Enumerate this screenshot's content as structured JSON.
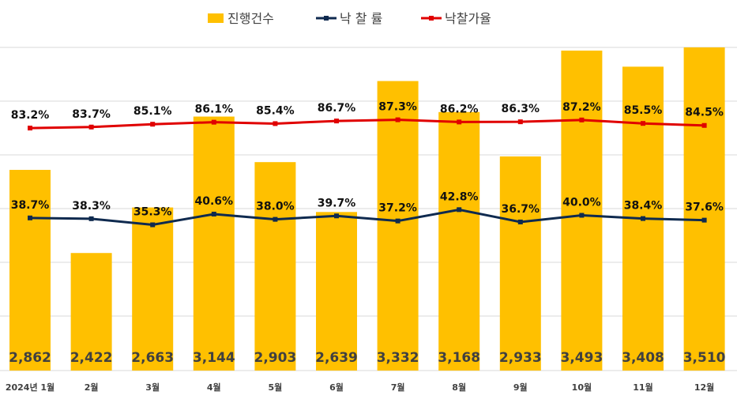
{
  "chart_data": {
    "type": "bar",
    "categories": [
      "2024년 1월",
      "2월",
      "3월",
      "4월",
      "5월",
      "6월",
      "7월",
      "8월",
      "9월",
      "10월",
      "11월",
      "12월"
    ],
    "series": [
      {
        "name": "진행건수",
        "type": "bar",
        "color": "#FFC000",
        "values": [
          2862,
          2422,
          2663,
          3144,
          2903,
          2639,
          3332,
          3168,
          2933,
          3493,
          3408,
          3510
        ],
        "labels": [
          "2,862",
          "2,422",
          "2,663",
          "3,144",
          "2,903",
          "2,639",
          "3,332",
          "3,168",
          "2,933",
          "3,493",
          "3,408",
          "3,510"
        ]
      },
      {
        "name": "낙 찰 률",
        "type": "line",
        "color": "#0F2A4F",
        "values": [
          38.7,
          38.3,
          35.3,
          40.6,
          38.0,
          39.7,
          37.2,
          42.8,
          36.7,
          40.0,
          38.4,
          37.6
        ],
        "labels": [
          "38.7%",
          "38.3%",
          "35.3%",
          "40.6%",
          "38.0%",
          "39.7%",
          "37.2%",
          "42.8%",
          "36.7%",
          "40.0%",
          "38.4%",
          "37.6%"
        ]
      },
      {
        "name": "낙찰가율",
        "type": "line",
        "color": "#E00000",
        "values": [
          83.2,
          83.7,
          85.1,
          86.1,
          85.4,
          86.7,
          87.3,
          86.2,
          86.3,
          87.2,
          85.5,
          84.5
        ],
        "labels": [
          "83.2%",
          "83.7%",
          "85.1%",
          "86.1%",
          "85.4%",
          "86.7%",
          "87.3%",
          "86.2%",
          "86.3%",
          "87.2%",
          "85.5%",
          "84.5%"
        ]
      }
    ],
    "legend_position": "top",
    "grid": true,
    "gridline_color": "#D9D9D9"
  }
}
